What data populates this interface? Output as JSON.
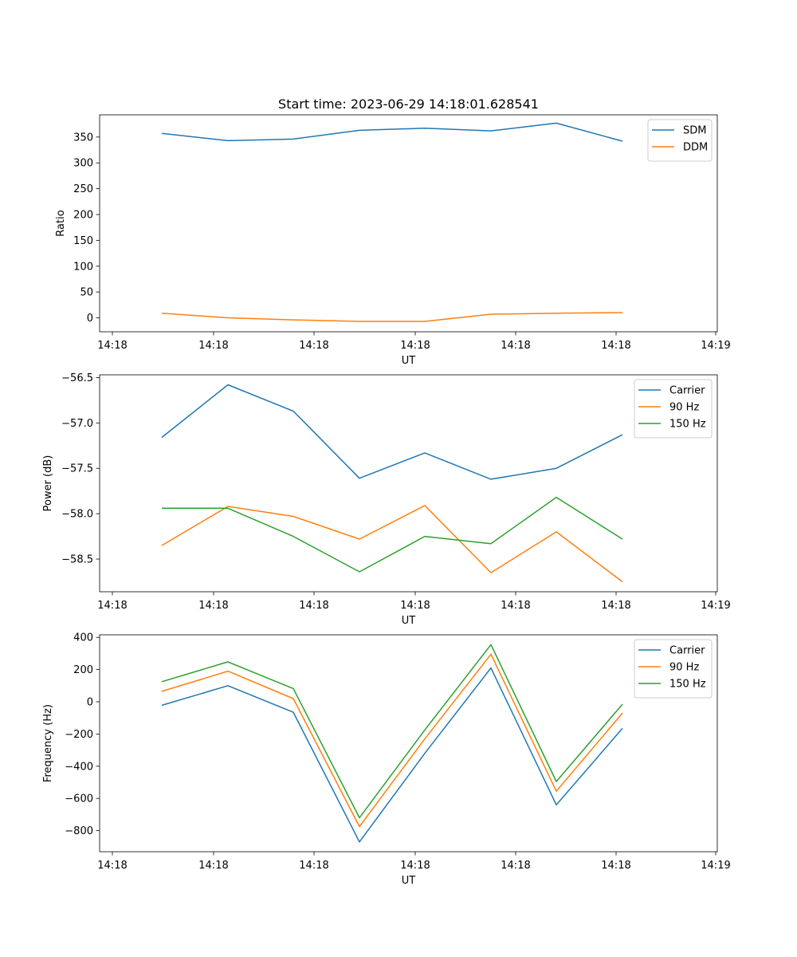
{
  "title": "Start time: 2023-06-29 14:18:01.628541",
  "chart_data": [
    {
      "type": "line",
      "xlabel": "UT",
      "ylabel": "Ratio",
      "x_tick_labels": [
        "14:18",
        "14:18",
        "14:18",
        "14:18",
        "14:18",
        "14:18",
        "14:19"
      ],
      "y_ticks": [
        0,
        50,
        100,
        150,
        200,
        250,
        300,
        350
      ],
      "ylim": [
        -27,
        393
      ],
      "legend": "upper right",
      "series": [
        {
          "name": "SDM",
          "color": "#1f77b4",
          "values": [
            357,
            343,
            346,
            363,
            367,
            362,
            377,
            342
          ]
        },
        {
          "name": "DDM",
          "color": "#ff7f0e",
          "values": [
            9,
            0,
            -4,
            -7,
            -7,
            7,
            9,
            10
          ]
        }
      ]
    },
    {
      "type": "line",
      "xlabel": "UT",
      "ylabel": "Power (dB)",
      "x_tick_labels": [
        "14:18",
        "14:18",
        "14:18",
        "14:18",
        "14:18",
        "14:18",
        "14:19"
      ],
      "y_ticks": [
        -56.5,
        -57.0,
        -57.5,
        -58.0,
        -58.5
      ],
      "y_tick_labels": [
        "−56.5",
        "−57.0",
        "−57.5",
        "−58.0",
        "−58.5"
      ],
      "ylim": [
        -58.86,
        -56.47
      ],
      "legend": "upper right",
      "series": [
        {
          "name": "Carrier",
          "color": "#1f77b4",
          "values": [
            -57.16,
            -56.58,
            -56.87,
            -57.61,
            -57.33,
            -57.62,
            -57.5,
            -57.13
          ]
        },
        {
          "name": "90 Hz",
          "color": "#ff7f0e",
          "values": [
            -58.35,
            -57.92,
            -58.03,
            -58.28,
            -57.91,
            -58.65,
            -58.2,
            -58.75
          ]
        },
        {
          "name": "150 Hz",
          "color": "#2ca02c",
          "values": [
            -57.94,
            -57.94,
            -58.25,
            -58.64,
            -58.25,
            -58.33,
            -57.82,
            -58.28
          ]
        }
      ]
    },
    {
      "type": "line",
      "xlabel": "UT",
      "ylabel": "Frequency (Hz)",
      "x_tick_labels": [
        "14:18",
        "14:18",
        "14:18",
        "14:18",
        "14:18",
        "14:18",
        "14:19"
      ],
      "y_ticks": [
        400,
        200,
        0,
        -200,
        -400,
        -600,
        -800
      ],
      "y_tick_labels": [
        "400",
        "200",
        "0",
        "−200",
        "−400",
        "−600",
        "−800"
      ],
      "ylim": [
        -931,
        416
      ],
      "legend": "upper right",
      "series": [
        {
          "name": "Carrier",
          "color": "#1f77b4",
          "values": [
            -22,
            100,
            -65,
            -870,
            -320,
            210,
            -640,
            -165
          ]
        },
        {
          "name": "90 Hz",
          "color": "#ff7f0e",
          "values": [
            65,
            190,
            20,
            -775,
            -230,
            295,
            -555,
            -70
          ]
        },
        {
          "name": "150 Hz",
          "color": "#2ca02c",
          "values": [
            125,
            248,
            82,
            -720,
            -175,
            355,
            -495,
            -15
          ]
        }
      ]
    }
  ]
}
